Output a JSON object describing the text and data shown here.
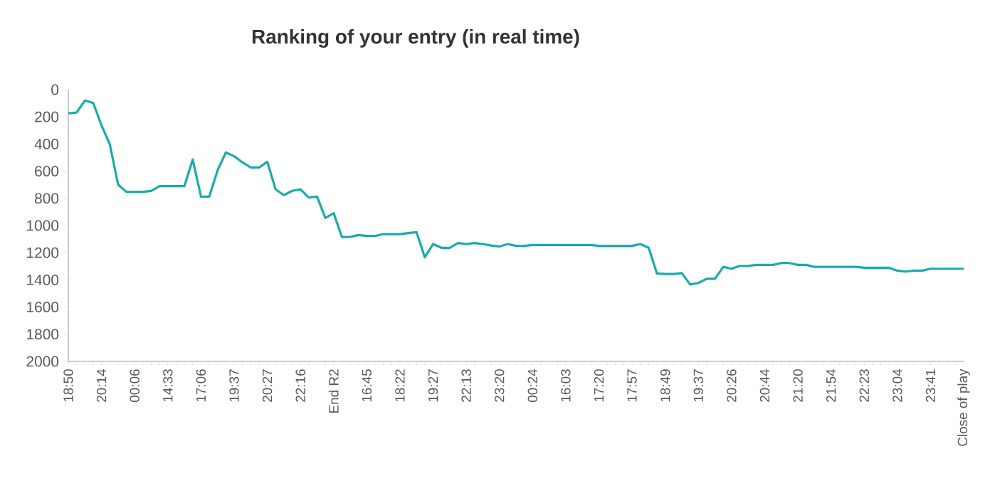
{
  "chart_data": {
    "type": "line",
    "title": "Ranking of your entry (in real time)",
    "categories": [
      "18:50",
      null,
      null,
      null,
      "20:14",
      null,
      null,
      null,
      "00:06",
      null,
      null,
      null,
      "14:33",
      null,
      null,
      null,
      "17:06",
      null,
      null,
      null,
      "19:37",
      null,
      null,
      null,
      "20:27",
      null,
      null,
      null,
      "22:16",
      null,
      null,
      null,
      "End R2",
      null,
      null,
      null,
      "16:45",
      null,
      null,
      null,
      "18:22",
      null,
      null,
      null,
      "19:27",
      null,
      null,
      null,
      "22:13",
      null,
      null,
      null,
      "23:20",
      null,
      null,
      null,
      "00:24",
      null,
      null,
      null,
      "16:03",
      null,
      null,
      null,
      "17:20",
      null,
      null,
      null,
      "17:57",
      null,
      null,
      null,
      "18:49",
      null,
      null,
      null,
      "19:37",
      null,
      null,
      null,
      "20:26",
      null,
      null,
      null,
      "20:44",
      null,
      null,
      null,
      "21:20",
      null,
      null,
      null,
      "21:54",
      null,
      null,
      null,
      "22:23",
      null,
      null,
      null,
      "23:04",
      null,
      null,
      null,
      "23:41",
      null,
      null,
      null,
      "Close of play"
    ],
    "values": [
      175,
      168,
      80,
      98,
      262,
      402,
      699,
      752,
      752,
      752,
      745,
      710,
      710,
      710,
      710,
      514,
      787,
      787,
      594,
      462,
      490,
      535,
      573,
      573,
      531,
      734,
      776,
      745,
      734,
      794,
      787,
      944,
      909,
      1084,
      1084,
      1070,
      1077,
      1077,
      1063,
      1063,
      1063,
      1056,
      1049,
      1234,
      1136,
      1164,
      1164,
      1129,
      1136,
      1129,
      1136,
      1147,
      1154,
      1136,
      1150,
      1150,
      1143,
      1143,
      1143,
      1143,
      1143,
      1143,
      1143,
      1143,
      1150,
      1150,
      1150,
      1150,
      1150,
      1136,
      1164,
      1353,
      1357,
      1357,
      1350,
      1434,
      1423,
      1392,
      1392,
      1304,
      1318,
      1297,
      1297,
      1290,
      1290,
      1290,
      1276,
      1276,
      1290,
      1290,
      1304,
      1304,
      1304,
      1304,
      1304,
      1304,
      1311,
      1311,
      1311,
      1311,
      1332,
      1339,
      1332,
      1332,
      1318,
      1318,
      1318,
      1318,
      1318
    ],
    "color": "#1aabaa",
    "ylim": [
      2000,
      0
    ],
    "yticks": [
      0,
      200,
      400,
      600,
      800,
      1000,
      1200,
      1400,
      1600,
      1800,
      2000
    ]
  }
}
